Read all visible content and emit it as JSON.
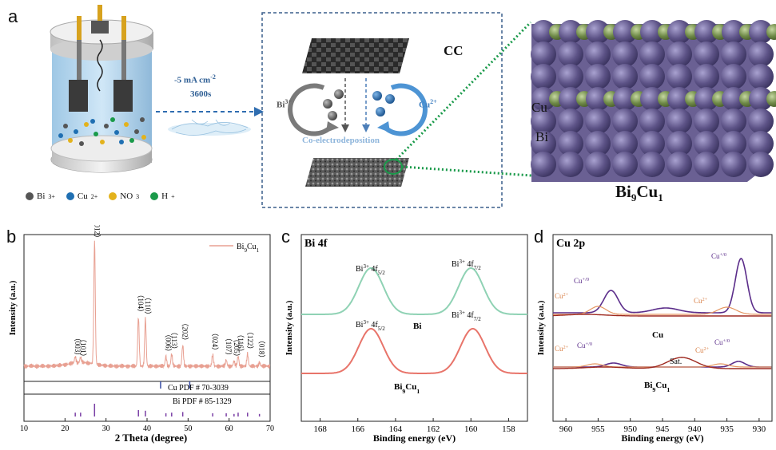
{
  "panels": {
    "a": {
      "label": "a",
      "arrow_line1": "-5 mA cm",
      "arrow_sup": "-2",
      "arrow_line2": "3600s",
      "cc_label": "CC",
      "bi_ion": "Bi",
      "bi_ion_sup": "3+",
      "cu_ion": "Cu",
      "cu_ion_sup": "2+",
      "process": "Co-electrodeposition",
      "legend": [
        {
          "text": "Bi",
          "sup": "3+",
          "color": "#555555"
        },
        {
          "text": "Cu",
          "sup": "2+",
          "color": "#1f6fb2"
        },
        {
          "text": "NO",
          "sub": "3",
          "color": "#e3b21c"
        },
        {
          "text": "H",
          "sup": "+",
          "color": "#1a9a4a"
        }
      ],
      "crystal_cu": "Cu",
      "crystal_bi": "Bi",
      "crystal_title_main": "Bi",
      "crystal_title_sub1": "9",
      "crystal_title_mid": "Cu",
      "crystal_title_sub2": "1"
    },
    "b": {
      "label": "b"
    },
    "c": {
      "label": "c"
    },
    "d": {
      "label": "d"
    }
  },
  "colors": {
    "bi": "#5e5488",
    "cu": "#6f8a48",
    "xrd": "#e8a092",
    "green_fit": "#8fd2b4",
    "red_fit": "#e8746a",
    "purple": "#5b2d8a",
    "dark_red": "#9e2a20"
  },
  "chart_data": [
    {
      "id": "b",
      "type": "line",
      "title": "",
      "xlabel": "2 Theta (degree)",
      "ylabel": "Intensity (a.u.)",
      "xlim": [
        10,
        70
      ],
      "xticks": [
        10,
        20,
        30,
        40,
        50,
        60,
        70
      ],
      "legend": "Bi9Cu1",
      "legend_main": "Bi",
      "legend_sub1": "9",
      "legend_mid": "Cu",
      "legend_sub2": "1",
      "peaks": [
        {
          "x": 22.5,
          "h": 0.05,
          "label": "（003）"
        },
        {
          "x": 23.8,
          "h": 0.04,
          "label": "（101）"
        },
        {
          "x": 27.2,
          "h": 1.0,
          "label": "（012）"
        },
        {
          "x": 37.9,
          "h": 0.4,
          "label": "（104）"
        },
        {
          "x": 39.6,
          "h": 0.38,
          "label": "（110）"
        },
        {
          "x": 44.6,
          "h": 0.08,
          "label": "（006）"
        },
        {
          "x": 46.0,
          "h": 0.1,
          "label": "（113）"
        },
        {
          "x": 48.7,
          "h": 0.17,
          "label": "（202）"
        },
        {
          "x": 56.0,
          "h": 0.09,
          "label": "（024）"
        },
        {
          "x": 59.3,
          "h": 0.05,
          "label": "（107）"
        },
        {
          "x": 61.2,
          "h": 0.04,
          "label": "（205）"
        },
        {
          "x": 62.2,
          "h": 0.08,
          "label": "（116）"
        },
        {
          "x": 64.5,
          "h": 0.1,
          "label": "（122）"
        },
        {
          "x": 67.4,
          "h": 0.03,
          "label": "（018）"
        }
      ],
      "references": [
        {
          "label": "Cu PDF # 70-3039",
          "lines": [
            43.3,
            50.4
          ],
          "color": "#3a4fa5"
        },
        {
          "label": "Bi  PDF # 85-1329",
          "lines": [
            22.5,
            23.8,
            27.2,
            37.9,
            39.6,
            44.6,
            46.0,
            48.7,
            56.0,
            59.3,
            61.2,
            62.2,
            64.5,
            67.4
          ],
          "heights": [
            0.3,
            0.3,
            1.0,
            0.5,
            0.45,
            0.25,
            0.3,
            0.35,
            0.25,
            0.25,
            0.2,
            0.3,
            0.3,
            0.2
          ],
          "color": "#7a3fa5"
        }
      ]
    },
    {
      "id": "c",
      "type": "line",
      "title": "Bi 4f",
      "xlabel": "Binding energy (eV)",
      "ylabel": "Intensity (a.u.)",
      "xlim": [
        169,
        157
      ],
      "xticks": [
        168,
        166,
        164,
        162,
        160,
        158
      ],
      "series": [
        {
          "name": "Bi",
          "peaks": [
            165.3,
            160.0
          ],
          "color": "#8fd2b4"
        },
        {
          "name": "Bi9Cu1",
          "name_main": "Bi",
          "name_sub1": "9",
          "name_mid": "Cu",
          "name_sub2": "1",
          "peaks": [
            165.3,
            159.9
          ],
          "color": "#e8746a"
        }
      ],
      "annotations": [
        {
          "ion": "Bi",
          "charge": "3+",
          "orb": "4f",
          "j": "5/2"
        },
        {
          "ion": "Bi",
          "charge": "3+",
          "orb": "4f",
          "j": "7/2"
        },
        {
          "ion": "Bi",
          "charge": "3+",
          "orb": "4f",
          "j": "5/2"
        },
        {
          "ion": "Bi",
          "charge": "3+",
          "orb": "4f",
          "j": "7/2"
        }
      ]
    },
    {
      "id": "d",
      "type": "line",
      "title": "Cu 2p",
      "xlabel": "Binding energy (eV)",
      "ylabel": "Intensity (a.u.)",
      "xlim": [
        962,
        928
      ],
      "xticks": [
        960,
        955,
        950,
        945,
        940,
        935,
        930
      ],
      "series": [
        {
          "name": "Cu",
          "peaks": [
            953.0,
            932.8
          ]
        },
        {
          "name": "Bi9Cu1",
          "name_main": "Bi",
          "name_sub1": "9",
          "name_mid": "Cu",
          "name_sub2": "1",
          "peaks": [
            952.5,
            942.0,
            933.0
          ]
        }
      ],
      "annotations": {
        "cu10": "Cu",
        "cu10_sup": "+/0",
        "cu2": "Cu",
        "cu2_sup": "2+",
        "sat": "Sat."
      }
    }
  ]
}
